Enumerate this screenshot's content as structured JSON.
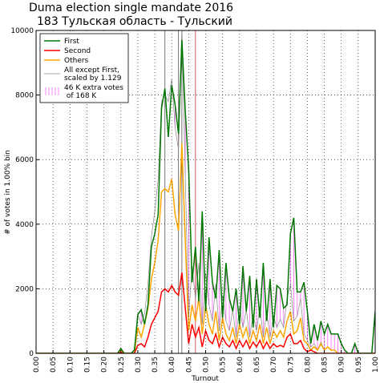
{
  "chart_data": {
    "type": "line",
    "title": "Duma election single mandate 2016",
    "subtitle": "183 Тульская область - Тульский",
    "xlabel": "Turnout",
    "ylabel": "# of votes in 1.00% bin",
    "x": [
      0,
      0.01,
      0.02,
      0.03,
      0.04,
      0.05,
      0.06,
      0.07,
      0.08,
      0.09,
      0.1,
      0.11,
      0.12,
      0.13,
      0.14,
      0.15,
      0.16,
      0.17,
      0.18,
      0.19,
      0.2,
      0.21,
      0.22,
      0.23,
      0.24,
      0.25,
      0.26,
      0.27,
      0.28,
      0.29,
      0.3,
      0.31,
      0.32,
      0.33,
      0.34,
      0.35,
      0.36,
      0.37,
      0.38,
      0.39,
      0.4,
      0.41,
      0.42,
      0.43,
      0.44,
      0.45,
      0.46,
      0.47,
      0.48,
      0.49,
      0.5,
      0.51,
      0.52,
      0.53,
      0.54,
      0.55,
      0.56,
      0.57,
      0.58,
      0.59,
      0.6,
      0.61,
      0.62,
      0.63,
      0.64,
      0.65,
      0.66,
      0.67,
      0.68,
      0.69,
      0.7,
      0.71,
      0.72,
      0.73,
      0.74,
      0.75,
      0.76,
      0.77,
      0.78,
      0.79,
      0.8,
      0.81,
      0.82,
      0.83,
      0.84,
      0.85,
      0.86,
      0.87,
      0.88,
      0.89,
      0.9,
      0.91,
      0.92,
      0.93,
      0.94,
      0.95,
      0.96,
      0.97,
      0.98,
      0.99,
      1
    ],
    "series": [
      {
        "name": "First",
        "color": "#007700",
        "values": [
          0,
          0,
          0,
          0,
          0,
          0,
          0,
          0,
          0,
          0,
          0,
          0,
          0,
          0,
          0,
          0,
          0,
          0,
          0,
          0,
          0,
          0,
          0,
          0,
          0,
          150,
          0,
          0,
          0,
          100,
          1200,
          1350,
          900,
          1500,
          3300,
          3700,
          4300,
          7600,
          8200,
          6700,
          8300,
          7700,
          6800,
          9700,
          7500,
          5700,
          2200,
          3300,
          1600,
          4400,
          1300,
          3600,
          2200,
          1700,
          3200,
          1100,
          2800,
          1700,
          1300,
          2000,
          900,
          2700,
          1300,
          2400,
          800,
          2300,
          1100,
          2800,
          1000,
          2300,
          800,
          2100,
          2000,
          1400,
          1500,
          3700,
          4200,
          1900,
          1900,
          2200,
          1300,
          300,
          900,
          400,
          1000,
          600,
          900,
          600,
          600,
          600,
          300,
          100,
          0,
          0,
          300,
          0,
          0,
          0,
          0,
          0,
          1300
        ]
      },
      {
        "name": "Second",
        "color": "#ff0000",
        "values": [
          0,
          0,
          0,
          0,
          0,
          0,
          0,
          0,
          0,
          0,
          0,
          0,
          0,
          0,
          0,
          0,
          0,
          0,
          0,
          0,
          0,
          0,
          0,
          0,
          0,
          30,
          0,
          0,
          0,
          0,
          250,
          300,
          200,
          500,
          900,
          1100,
          1300,
          1900,
          2000,
          1900,
          2100,
          1900,
          1800,
          2500,
          1400,
          300,
          900,
          500,
          800,
          200,
          700,
          400,
          300,
          600,
          200,
          500,
          300,
          200,
          400,
          150,
          400,
          200,
          400,
          150,
          350,
          200,
          400,
          150,
          350,
          150,
          300,
          200,
          250,
          200,
          500,
          600,
          300,
          300,
          400,
          150,
          50,
          100,
          50,
          0,
          0,
          0,
          0,
          0,
          0,
          0,
          0,
          0,
          0,
          0,
          0,
          0,
          0,
          0,
          0,
          0,
          0
        ]
      },
      {
        "name": "Others",
        "color": "#ffa500",
        "values": [
          0,
          0,
          0,
          0,
          0,
          0,
          0,
          0,
          0,
          0,
          0,
          0,
          0,
          0,
          0,
          0,
          0,
          0,
          0,
          0,
          0,
          0,
          0,
          0,
          0,
          100,
          0,
          0,
          0,
          0,
          800,
          500,
          900,
          1400,
          2300,
          2800,
          3500,
          5000,
          5100,
          5000,
          5400,
          4300,
          3800,
          6500,
          3500,
          700,
          1500,
          1000,
          1700,
          600,
          1500,
          900,
          600,
          1300,
          400,
          1100,
          600,
          400,
          800,
          300,
          900,
          500,
          800,
          300,
          700,
          400,
          900,
          300,
          800,
          300,
          700,
          500,
          700,
          500,
          1000,
          1300,
          600,
          700,
          1100,
          400,
          300,
          100,
          200,
          100,
          300,
          100,
          200,
          100,
          100,
          0,
          0,
          0,
          0,
          0,
          0,
          0,
          0,
          0,
          0,
          0,
          0
        ]
      },
      {
        "name": "All except First,\nscaled by 1.129",
        "color": "#888888",
        "values": [
          0,
          0,
          0,
          0,
          0,
          0,
          0,
          0,
          0,
          0,
          0,
          0,
          0,
          0,
          0,
          0,
          0,
          0,
          0,
          0,
          0,
          0,
          0,
          0,
          0,
          150,
          0,
          0,
          0,
          0,
          1200,
          900,
          1240,
          2150,
          3600,
          4400,
          5400,
          7800,
          8000,
          7800,
          8500,
          7000,
          6300,
          10100,
          5500,
          1100,
          2700,
          1700,
          2800,
          900,
          2500,
          1500,
          1000,
          2150,
          700,
          1800,
          1000,
          700,
          1350,
          500,
          1450,
          800,
          1350,
          500,
          1200,
          700,
          1450,
          500,
          1300,
          500,
          1150,
          800,
          1050,
          800,
          1700,
          2150,
          1000,
          1150,
          1700,
          600,
          400,
          200,
          300,
          100,
          350,
          100,
          200,
          100,
          100,
          0,
          0,
          0,
          0,
          0,
          0,
          0,
          0,
          0,
          0,
          0,
          0
        ]
      }
    ],
    "extra_votes": {
      "name": "46 K extra votes\n of 168 K",
      "color": "#ff66ff"
    },
    "vlines": [
      {
        "x": 0.38,
        "color": "#555555"
      },
      {
        "x": 0.42,
        "color": "#555555"
      },
      {
        "x": 0.43,
        "color": "#555555"
      },
      {
        "x": 0.47,
        "color": "#cc3333"
      }
    ],
    "xlim": [
      0,
      1
    ],
    "ylim": [
      0,
      10000
    ],
    "xticks": [
      {
        "value": 0,
        "label": "0.00"
      },
      {
        "value": 0.05,
        "label": "0.05"
      },
      {
        "value": 0.1,
        "label": "0.10"
      },
      {
        "value": 0.15,
        "label": "0.15"
      },
      {
        "value": 0.2,
        "label": "0.20"
      },
      {
        "value": 0.25,
        "label": "0.25"
      },
      {
        "value": 0.3,
        "label": "0.30"
      },
      {
        "value": 0.35,
        "label": "0.35"
      },
      {
        "value": 0.4,
        "label": "0.40"
      },
      {
        "value": 0.45,
        "label": "0.45"
      },
      {
        "value": 0.5,
        "label": "0.50"
      },
      {
        "value": 0.55,
        "label": "0.55"
      },
      {
        "value": 0.6,
        "label": "0.60"
      },
      {
        "value": 0.65,
        "label": "0.65"
      },
      {
        "value": 0.7,
        "label": "0.70"
      },
      {
        "value": 0.75,
        "label": "0.75"
      },
      {
        "value": 0.8,
        "label": "0.80"
      },
      {
        "value": 0.85,
        "label": "0.85"
      },
      {
        "value": 0.9,
        "label": "0.90"
      },
      {
        "value": 0.95,
        "label": "0.95"
      },
      {
        "value": 1,
        "label": "1.00"
      }
    ],
    "yticks": [
      0,
      2000,
      4000,
      6000,
      8000,
      10000
    ],
    "grid": true,
    "legend": "upper left"
  }
}
